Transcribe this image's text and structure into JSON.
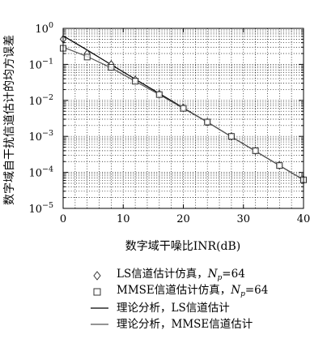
{
  "chart_data": {
    "type": "line",
    "xlabel": "数字域干噪比INR(dB)",
    "ylabel": "数字域自干扰信道估计的均方误差",
    "xlim": [
      0,
      40
    ],
    "ylim_log10": [
      -5,
      0
    ],
    "yscale": "log",
    "grid": true,
    "x_ticks": [
      "0",
      "10",
      "20",
      "30",
      "40"
    ],
    "y_ticks": [
      {
        "base": "10",
        "exp": "0"
      },
      {
        "base": "10",
        "exp": "−1"
      },
      {
        "base": "10",
        "exp": "−2"
      },
      {
        "base": "10",
        "exp": "−3"
      },
      {
        "base": "10",
        "exp": "−4"
      },
      {
        "base": "10",
        "exp": "−5"
      }
    ],
    "series": [
      {
        "name": "LS信道估计仿真，Np=64",
        "style": "markers",
        "marker": "diamond",
        "x": [
          0,
          4,
          8,
          12,
          16,
          20,
          24,
          28,
          32,
          36,
          40
        ],
        "y": [
          0.5,
          0.2,
          0.1,
          0.037,
          0.015,
          0.0062,
          0.0025,
          0.001,
          0.0004,
          0.000155,
          6.2e-05
        ]
      },
      {
        "name": "MMSE信道估计仿真，Np=64",
        "style": "markers",
        "marker": "square",
        "x": [
          0,
          4,
          8,
          12,
          16,
          20,
          24,
          28,
          32,
          36,
          40
        ],
        "y": [
          0.28,
          0.16,
          0.083,
          0.034,
          0.0145,
          0.006,
          0.0025,
          0.001,
          0.0004,
          0.000155,
          6.2e-05
        ]
      },
      {
        "name": "理论分析，LS信道估计",
        "style": "line",
        "marker": "none",
        "x": [
          0,
          4,
          8,
          12,
          16,
          20,
          24,
          28,
          32,
          36,
          40
        ],
        "y": [
          0.62,
          0.25,
          0.098,
          0.039,
          0.0155,
          0.0062,
          0.0025,
          0.00098,
          0.00039,
          0.000155,
          6.2e-05
        ]
      },
      {
        "name": "理论分析，MMSE信道估计",
        "style": "line",
        "marker": "none",
        "x": [
          0,
          4,
          8,
          12,
          16,
          20,
          24,
          28,
          32,
          36,
          40
        ],
        "y": [
          0.3,
          0.165,
          0.08,
          0.034,
          0.0145,
          0.006,
          0.0025,
          0.00098,
          0.00039,
          0.000155,
          6.2e-05
        ]
      }
    ]
  },
  "legend": {
    "placement": "below-plot",
    "items": [
      {
        "text_before": "LS信道估计仿真，",
        "var": "N",
        "sub": "p",
        "text_after": "=64"
      },
      {
        "text_before": "MMSE信道估计仿真，",
        "var": "N",
        "sub": "p",
        "text_after": "=64"
      },
      {
        "text_before": "理论分析，LS信道估计",
        "var": "",
        "sub": "",
        "text_after": ""
      },
      {
        "text_before": "理论分析，MMSE信道估计",
        "var": "",
        "sub": "",
        "text_after": ""
      }
    ]
  }
}
